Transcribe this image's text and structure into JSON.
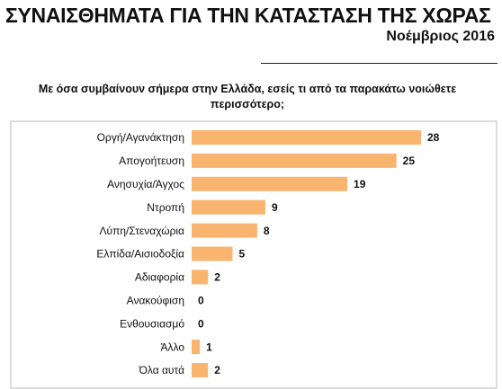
{
  "chart_data": {
    "type": "barh",
    "title": "ΣΥΝΑΙΣΘΗΜΑΤΑ ΓΙΑ ΤΗΝ ΚΑΤΑΣΤΑΣΗ ΤΗΣ ΧΩΡΑΣ",
    "subtitle": "Νοέμβριος 2016",
    "question": "Με όσα συμβαίνουν σήμερα στην Ελλάδα, εσείς τι από τα παρακάτω νοιώθετε περισσότερο;",
    "categories": [
      "Οργή/Αγανάκτηση",
      "Απογοήτευση",
      "Ανησυχία/Άγχος",
      "Ντροπή",
      "Λύπη/Στεναχώρια",
      "Ελπίδα/Αισιοδοξία",
      "Αδιαφορία",
      "Ανακούφιση",
      "Ενθουσιασμό",
      "Άλλο",
      "Όλα αυτά"
    ],
    "values": [
      28,
      25,
      19,
      9,
      8,
      5,
      2,
      0,
      0,
      1,
      2
    ],
    "color": "#f9b46f",
    "xlim": [
      0,
      28
    ]
  }
}
